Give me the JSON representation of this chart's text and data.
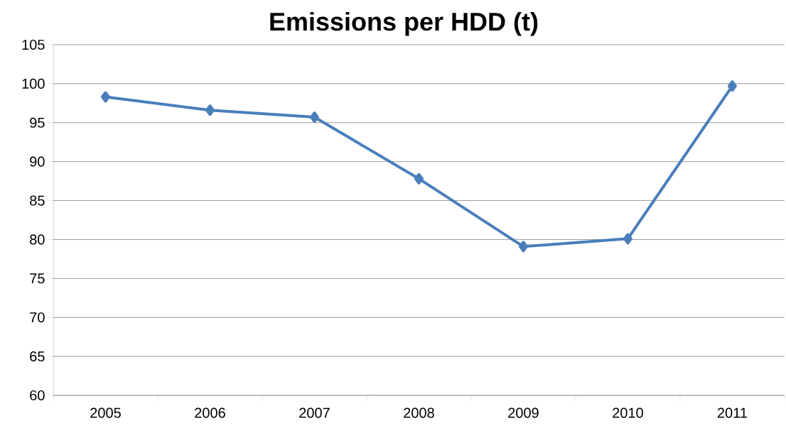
{
  "chart_data": {
    "type": "line",
    "title": "Emissions per HDD (t)",
    "categories": [
      "2005",
      "2006",
      "2007",
      "2008",
      "2009",
      "2010",
      "2011"
    ],
    "series": [
      {
        "color": "#4a7ebb",
        "values": [
          98.3,
          96.6,
          95.7,
          87.8,
          79.1,
          80.1,
          99.7
        ]
      }
    ],
    "ylim": [
      60,
      105
    ],
    "yticks": [
      60,
      65,
      70,
      75,
      80,
      85,
      90,
      95,
      100,
      105
    ],
    "grid": "y",
    "marker": "diamond",
    "line_style": "solid"
  }
}
